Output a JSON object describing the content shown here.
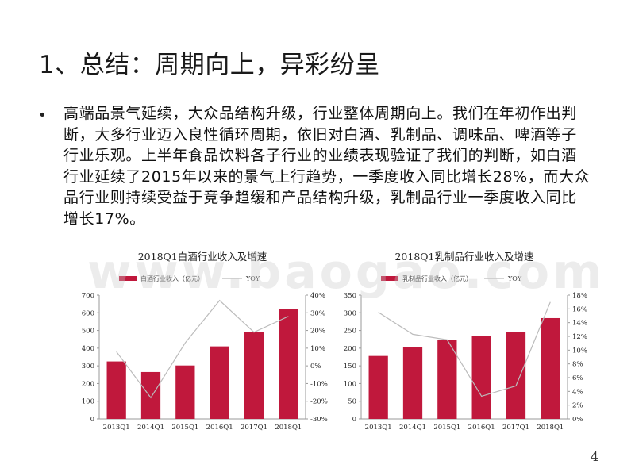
{
  "slide": {
    "title": "1、总结：周期向上，异彩纷呈",
    "bullet": "高端品景气延续，大众品结构升级，行业整体周期向上。我们在年初作出判断，大多行业迈入良性循环周期，依旧对白酒、乳制品、调味品、啤酒等子行业乐观。上半年食品饮料各子行业的业绩表现验证了我们的判断，如白酒行业延续了2015年以来的景气上行趋势，一季度收入同比增长28%，而大众品行业则持续受益于竞争趋缓和产品结构升级，乳制品行业一季度收入同比增长17%。",
    "watermark": "www.baogao.com",
    "page_number": "4"
  },
  "colors": {
    "bar": "#c0183c",
    "line": "#bbbbbb",
    "axis": "#999999",
    "text": "#222222"
  },
  "chart_data": [
    {
      "type": "bar",
      "title": "2018Q1白酒行业收入及增速",
      "categories": [
        "2013Q1",
        "2014Q1",
        "2015Q1",
        "2016Q1",
        "2017Q1",
        "2018Q1"
      ],
      "series": [
        {
          "name": "白酒行业收入（亿元）",
          "type": "bar",
          "axis": "left",
          "values": [
            325,
            265,
            302,
            410,
            490,
            622
          ]
        },
        {
          "name": "YOY",
          "type": "line",
          "axis": "right",
          "values": [
            8,
            -18,
            13,
            37,
            19,
            28
          ]
        }
      ],
      "ylim": [
        0,
        700
      ],
      "yticks": [
        0,
        100,
        200,
        300,
        400,
        500,
        600,
        700
      ],
      "y2lim": [
        -30,
        40
      ],
      "y2ticks": [
        -30,
        -20,
        -10,
        0,
        10,
        20,
        30,
        40
      ],
      "y2tick_labels": [
        "-30%",
        "-20%",
        "-10%",
        "0%",
        "10%",
        "20%",
        "30%",
        "40%"
      ],
      "legend": "top"
    },
    {
      "type": "bar",
      "title": "2018Q1乳制品行业收入及增速",
      "categories": [
        "2013Q1",
        "2014Q1",
        "2015Q1",
        "2016Q1",
        "2017Q1",
        "2018Q1"
      ],
      "series": [
        {
          "name": "乳制品行业收入（亿元）",
          "type": "bar",
          "axis": "left",
          "values": [
            178,
            202,
            224,
            234,
            245,
            285
          ]
        },
        {
          "name": "YOY",
          "type": "line",
          "axis": "right",
          "values": [
            15.5,
            12.3,
            11.5,
            3.3,
            4.8,
            17
          ]
        }
      ],
      "ylim": [
        0,
        350
      ],
      "yticks": [
        0,
        50,
        100,
        150,
        200,
        250,
        300,
        350
      ],
      "y2lim": [
        0,
        18
      ],
      "y2ticks": [
        0,
        2,
        4,
        6,
        8,
        10,
        12,
        14,
        16,
        18
      ],
      "y2tick_labels": [
        "0%",
        "2%",
        "4%",
        "6%",
        "8%",
        "10%",
        "12%",
        "14%",
        "16%",
        "18%"
      ],
      "legend": "top"
    }
  ]
}
